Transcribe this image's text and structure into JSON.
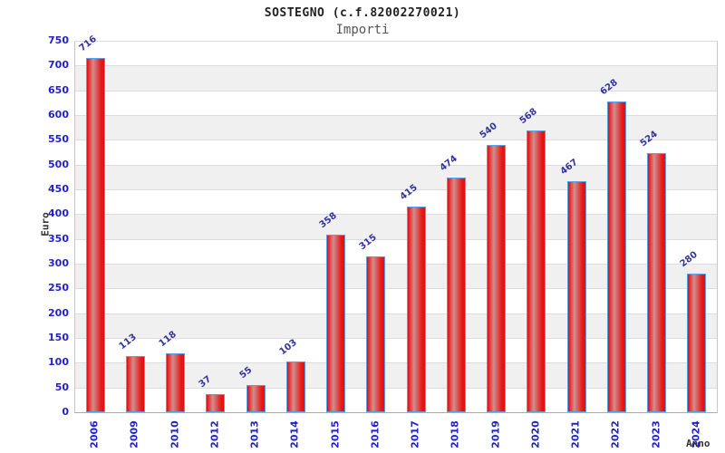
{
  "header": {
    "title": "SOSTEGNO (c.f.82002270021)",
    "subtitle": "Importi"
  },
  "chart_data": {
    "type": "bar",
    "title": "SOSTEGNO (c.f.82002270021)",
    "subtitle": "Importi",
    "categories": [
      "2006",
      "2009",
      "2010",
      "2012",
      "2013",
      "2014",
      "2015",
      "2016",
      "2017",
      "2018",
      "2019",
      "2020",
      "2021",
      "2022",
      "2023",
      "2024"
    ],
    "values": [
      716,
      113,
      118,
      37,
      55,
      103,
      358,
      315,
      415,
      474,
      540,
      568,
      467,
      628,
      524,
      280
    ],
    "xlabel": "Anno",
    "ylabel": "Euro",
    "ylim": [
      0,
      750
    ],
    "ytick_step": 50,
    "grid": true,
    "legend": false,
    "bands_alternating": true,
    "colors": {
      "bar_red": "#e81616",
      "bar_mid_highlight": "#cf8f8f",
      "bar_border": "#5b9ee8",
      "tick_label_blue": "#2222cc",
      "value_label_navy": "#3333a0",
      "band_gray": "#f0f0f0",
      "gridline": "#dcdcdc",
      "title_color": "#222222",
      "subtitle_color": "#555555",
      "axis_title_color": "#333333"
    }
  }
}
